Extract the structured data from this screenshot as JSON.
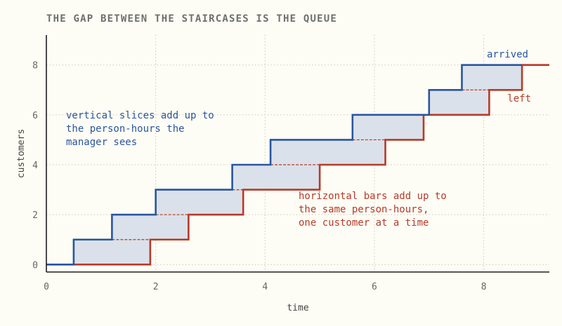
{
  "chart_data": {
    "type": "line",
    "title": "THE GAP BETWEEN THE STAIRCASES IS THE QUEUE",
    "xlabel": "time",
    "ylabel": "customers",
    "xlim": [
      0,
      9.2
    ],
    "ylim": [
      -0.3,
      9.2
    ],
    "x_ticks": [
      0,
      2,
      4,
      6,
      8
    ],
    "y_ticks": [
      0,
      2,
      4,
      6,
      8
    ],
    "grid": true,
    "series": [
      {
        "name": "arrived",
        "color": "#2a55a0",
        "step_times": [
          0.5,
          1.2,
          2.0,
          3.4,
          4.1,
          5.6,
          7.0,
          7.6
        ],
        "final_count": 8,
        "end_x": 8.7
      },
      {
        "name": "left",
        "color": "#b83a28",
        "step_times": [
          1.9,
          2.6,
          3.6,
          5.0,
          6.2,
          6.9,
          8.1,
          8.7
        ],
        "final_count": 8,
        "end_x": 9.2
      }
    ],
    "fill_color": "#dae1ea",
    "annotations": [
      {
        "name": "vertical-slices-note",
        "color": "#2a55a0",
        "lines": [
          "vertical slices add up to",
          "the person-hours the",
          "manager sees"
        ]
      },
      {
        "name": "horizontal-bars-note",
        "color": "#b83a28",
        "lines": [
          "horizontal bars add up to",
          "the same person-hours,",
          "one customer at a time"
        ]
      }
    ]
  }
}
